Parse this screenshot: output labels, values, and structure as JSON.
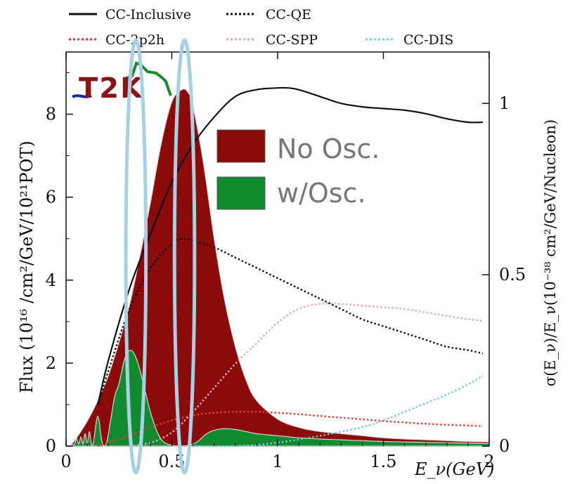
{
  "chart_data": {
    "type": "area",
    "xlabel": "E_ν(GeV)",
    "ylabel_left": "Flux (10¹⁶ /cm²/GeV/10²¹POT)",
    "ylabel_right": "σ(E_ν)/E_ν(10⁻³⁸ cm²/GeV/Nucleon)",
    "xlim": [
      0,
      2
    ],
    "ylim_left": [
      0,
      9.5
    ],
    "ylim_right": [
      0,
      1.15
    ],
    "x_ticks": [
      "0",
      "0.5",
      "1",
      "1.5",
      "2"
    ],
    "y_left_ticks": [
      "0",
      "2",
      "4",
      "6",
      "8"
    ],
    "y_right_ticks": [
      "0",
      "0.5",
      "1"
    ],
    "logo_text": "T2K",
    "inset_legend": [
      {
        "label": "No Osc.",
        "color": "#8b0a0a"
      },
      {
        "label": "w/Osc.",
        "color": "#128a30"
      }
    ],
    "legend": [
      {
        "label": "CC-Inclusive",
        "color": "#111111",
        "style": "solid"
      },
      {
        "label": "CC-QE",
        "color": "#111111",
        "style": "dotted"
      },
      {
        "label": "CC-2p2h",
        "color": "#e03a3a",
        "style": "dotted"
      },
      {
        "label": "CC-SPP",
        "color": "#e0a8b8",
        "style": "dotted"
      },
      {
        "label": "CC-DIS",
        "color": "#70c8d8",
        "style": "dotted"
      }
    ],
    "flux_no_osc": {
      "x": [
        0.02,
        0.05,
        0.1,
        0.15,
        0.2,
        0.25,
        0.3,
        0.35,
        0.4,
        0.45,
        0.5,
        0.55,
        0.58,
        0.6,
        0.65,
        0.7,
        0.75,
        0.8,
        0.85,
        0.9,
        1.0,
        1.1,
        1.2,
        1.3,
        1.4,
        1.5,
        1.6,
        1.7,
        1.8,
        1.9,
        2.0
      ],
      "y": [
        0.0,
        0.2,
        0.6,
        1.1,
        1.7,
        2.5,
        3.4,
        4.6,
        5.9,
        7.3,
        8.3,
        8.6,
        8.5,
        8.2,
        6.8,
        5.0,
        3.5,
        2.4,
        1.6,
        1.1,
        0.65,
        0.45,
        0.35,
        0.3,
        0.25,
        0.2,
        0.17,
        0.15,
        0.13,
        0.11,
        0.1
      ]
    },
    "flux_osc": {
      "x": [
        0.02,
        0.04,
        0.05,
        0.06,
        0.07,
        0.08,
        0.09,
        0.1,
        0.11,
        0.12,
        0.13,
        0.15,
        0.17,
        0.19,
        0.21,
        0.23,
        0.25,
        0.28,
        0.31,
        0.34,
        0.37,
        0.4,
        0.43,
        0.46,
        0.5,
        0.54,
        0.58,
        0.62,
        0.66,
        0.7,
        0.75,
        0.8,
        0.85,
        0.9,
        1.0,
        1.1,
        1.2,
        1.3,
        1.4,
        1.5,
        1.6,
        1.7,
        1.8,
        1.9,
        2.0
      ],
      "y": [
        0.0,
        0.05,
        0.18,
        0.05,
        0.22,
        0.05,
        0.3,
        0.05,
        0.35,
        0.05,
        0.1,
        0.72,
        0.1,
        0.05,
        0.6,
        1.2,
        1.5,
        2.15,
        2.3,
        2.0,
        1.4,
        0.8,
        0.35,
        0.1,
        0.02,
        0.0,
        0.02,
        0.1,
        0.28,
        0.38,
        0.42,
        0.4,
        0.35,
        0.3,
        0.25,
        0.2,
        0.17,
        0.15,
        0.13,
        0.11,
        0.1,
        0.09,
        0.08,
        0.07,
        0.06
      ]
    },
    "series": [
      {
        "name": "CC-Inclusive",
        "x": [
          0.15,
          0.2,
          0.3,
          0.4,
          0.5,
          0.6,
          0.7,
          0.8,
          0.9,
          1.0,
          1.05,
          1.1,
          1.2,
          1.3,
          1.4,
          1.5,
          1.6,
          1.7,
          1.8,
          1.9,
          1.97
        ],
        "y": [
          0.12,
          0.25,
          0.46,
          0.62,
          0.77,
          0.88,
          0.96,
          1.02,
          1.04,
          1.045,
          1.045,
          1.04,
          1.02,
          1.0,
          0.99,
          0.985,
          0.98,
          0.97,
          0.955,
          0.945,
          0.945
        ]
      },
      {
        "name": "CC-QE",
        "x": [
          0.15,
          0.2,
          0.3,
          0.4,
          0.5,
          0.55,
          0.6,
          0.7,
          0.8,
          0.9,
          1.0,
          1.1,
          1.2,
          1.3,
          1.4,
          1.5,
          1.6,
          1.7,
          1.8,
          1.9,
          1.97
        ],
        "y": [
          0.12,
          0.22,
          0.4,
          0.52,
          0.59,
          0.605,
          0.6,
          0.58,
          0.55,
          0.52,
          0.49,
          0.46,
          0.43,
          0.4,
          0.37,
          0.35,
          0.33,
          0.31,
          0.29,
          0.28,
          0.27
        ]
      },
      {
        "name": "CC-2p2h",
        "x": [
          0.15,
          0.2,
          0.3,
          0.4,
          0.5,
          0.6,
          0.7,
          0.8,
          0.9,
          1.0,
          1.1,
          1.2,
          1.3,
          1.4,
          1.5,
          1.6,
          1.7,
          1.8,
          1.9,
          1.97
        ],
        "y": [
          0.0,
          0.01,
          0.03,
          0.055,
          0.075,
          0.09,
          0.097,
          0.1,
          0.1,
          0.097,
          0.093,
          0.088,
          0.083,
          0.078,
          0.073,
          0.069,
          0.065,
          0.062,
          0.06,
          0.058
        ]
      },
      {
        "name": "CC-SPP",
        "x": [
          0.3,
          0.4,
          0.5,
          0.6,
          0.7,
          0.8,
          0.9,
          1.0,
          1.1,
          1.2,
          1.3,
          1.4,
          1.5,
          1.6,
          1.7,
          1.8,
          1.9,
          1.97
        ],
        "y": [
          0.0,
          0.01,
          0.04,
          0.1,
          0.17,
          0.24,
          0.3,
          0.36,
          0.4,
          0.415,
          0.415,
          0.41,
          0.405,
          0.4,
          0.39,
          0.38,
          0.37,
          0.365
        ]
      },
      {
        "name": "CC-DIS",
        "x": [
          0.6,
          0.8,
          1.0,
          1.2,
          1.4,
          1.5,
          1.6,
          1.7,
          1.8,
          1.9,
          1.97
        ],
        "y": [
          0.0,
          0.0,
          0.01,
          0.03,
          0.055,
          0.075,
          0.1,
          0.125,
          0.15,
          0.18,
          0.205
        ]
      }
    ],
    "highlight_ellipses": [
      {
        "x_center": 0.33,
        "x_halfwidth": 0.09
      },
      {
        "x_center": 0.56,
        "x_halfwidth": 0.09
      }
    ]
  }
}
